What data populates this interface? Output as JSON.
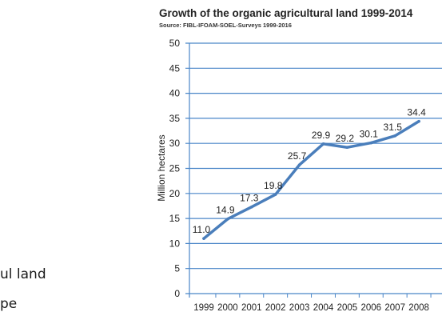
{
  "side_text": {
    "line1": "ul land",
    "line2": "pe"
  },
  "chart_data": {
    "type": "line",
    "title": "Growth of the organic agricultural land 1999-2014",
    "subtitle": "Source: FIBL-IFOAM-SOEL-Surveys 1999-2016",
    "xlabel": "",
    "ylabel": "Million hectares",
    "ylim": [
      0,
      50
    ],
    "yticks": [
      0,
      5,
      10,
      15,
      20,
      25,
      30,
      35,
      40,
      45,
      50
    ],
    "categories": [
      "1999",
      "2000",
      "2001",
      "2002",
      "2003",
      "2004",
      "2005",
      "2006",
      "2007",
      "2008"
    ],
    "series": [
      {
        "values": [
          11.0,
          14.9,
          17.3,
          19.8,
          25.7,
          29.9,
          29.2,
          30.1,
          31.5,
          34.4
        ],
        "labels": [
          "11.0",
          "14.9",
          "17.3",
          "19.8",
          "25.7",
          "29.9",
          "29.2",
          "30.1",
          "31.5",
          "34.4"
        ],
        "color": "#4a7ebb"
      }
    ],
    "grid": true,
    "grid_color": "#4a86c8"
  }
}
